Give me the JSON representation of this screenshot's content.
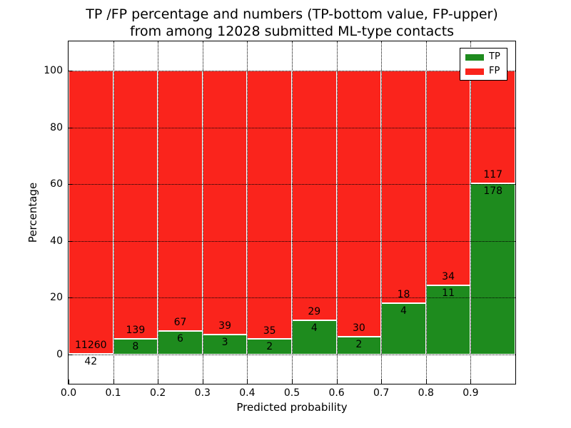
{
  "chart_data": {
    "type": "bar",
    "stacked_percentage": true,
    "title": "TP /FP percentage and numbers (TP-bottom value, FP-upper) from among 12028 submitted ML-type contacts",
    "title_lines": [
      "TP /FP percentage and numbers (TP-bottom value, FP-upper)",
      "from among 12028 submitted ML-type contacts"
    ],
    "xlabel": "Predicted probability",
    "ylabel": "Percentage",
    "bin_edges": [
      0.0,
      0.1,
      0.2,
      0.3,
      0.4,
      0.5,
      0.6,
      0.7,
      0.8,
      0.9,
      1.0
    ],
    "series": [
      {
        "name": "TP",
        "color": "#1e8b1e",
        "counts": [
          42,
          8,
          6,
          3,
          2,
          4,
          2,
          4,
          11,
          178
        ],
        "pct": [
          0.37,
          5.44,
          8.22,
          7.14,
          5.41,
          12.12,
          6.25,
          18.18,
          24.44,
          60.34
        ]
      },
      {
        "name": "FP",
        "color": "#fa241c",
        "counts": [
          11260,
          139,
          67,
          39,
          35,
          29,
          30,
          18,
          34,
          117
        ],
        "pct": [
          99.63,
          94.56,
          91.78,
          92.86,
          94.59,
          87.88,
          93.75,
          81.82,
          75.56,
          39.66
        ]
      }
    ],
    "xticks": [
      "0.0",
      "0.1",
      "0.2",
      "0.3",
      "0.4",
      "0.5",
      "0.6",
      "0.7",
      "0.8",
      "0.9"
    ],
    "yticks": [
      0,
      20,
      40,
      60,
      80,
      100
    ],
    "xlim": [
      0.0,
      1.0
    ],
    "ylim": [
      -10.3,
      110.3
    ],
    "grid": true,
    "legend": {
      "position": "upper right"
    }
  }
}
